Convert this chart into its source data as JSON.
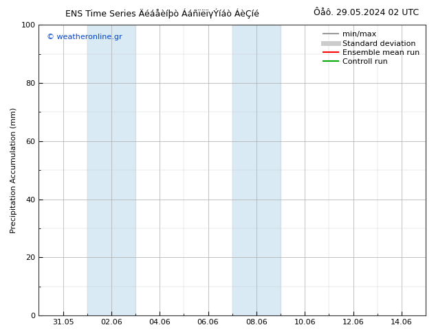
{
  "title_left": "ENS Time Series Äéáåèíþò ÁáñïëïγÝíáò ÁèÇíé",
  "title_right": "Ôåô. 29.05.2024 02 UTC",
  "ylabel": "Precipitation Accumulation (mm)",
  "ylim": [
    0,
    100
  ],
  "yticks": [
    0,
    20,
    40,
    60,
    80,
    100
  ],
  "xtick_labels": [
    "31.05",
    "02.06",
    "04.06",
    "06.06",
    "08.06",
    "10.06",
    "12.06",
    "14.06"
  ],
  "xtick_positions": [
    1,
    3,
    5,
    7,
    9,
    11,
    13,
    15
  ],
  "xlim": [
    0,
    16
  ],
  "shade_bands": [
    {
      "x_start": 2.0,
      "x_end": 4.0,
      "color": "#daeaf5"
    },
    {
      "x_start": 8.0,
      "x_end": 10.0,
      "color": "#daeaf5"
    }
  ],
  "watermark": "© weatheronline.gr",
  "legend_items": [
    {
      "label": "min/max",
      "color": "#999999",
      "lw": 1.5,
      "ls": "-"
    },
    {
      "label": "Standard deviation",
      "color": "#cccccc",
      "lw": 5,
      "ls": "-"
    },
    {
      "label": "Ensemble mean run",
      "color": "#ff0000",
      "lw": 1.5,
      "ls": "-"
    },
    {
      "label": "Controll run",
      "color": "#00aa00",
      "lw": 1.5,
      "ls": "-"
    }
  ],
  "bg_color": "#ffffff",
  "plot_bg_color": "#ffffff",
  "title_fontsize": 9,
  "axis_fontsize": 8,
  "tick_fontsize": 8,
  "watermark_color": "#0044cc",
  "legend_fontsize": 8
}
